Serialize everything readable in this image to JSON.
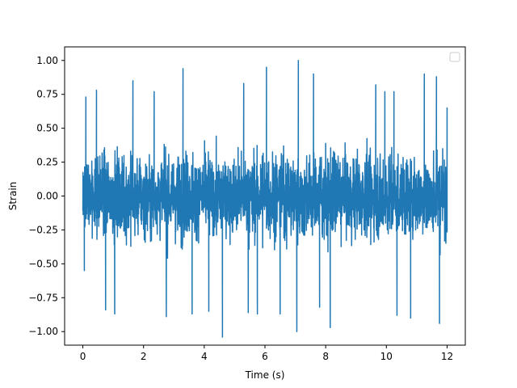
{
  "chart_data": {
    "type": "line",
    "title": "",
    "xlabel": "Time (s)",
    "ylabel": "Strain",
    "xlim": [
      -0.6,
      12.6
    ],
    "ylim": [
      -1.1,
      1.1
    ],
    "x_ticks": [
      0,
      2,
      4,
      6,
      8,
      10,
      12
    ],
    "x_tick_labels": [
      "0",
      "2",
      "4",
      "6",
      "8",
      "10",
      "12"
    ],
    "y_ticks": [
      -1.0,
      -0.75,
      -0.5,
      -0.25,
      0.0,
      0.25,
      0.5,
      0.75,
      1.0
    ],
    "y_tick_labels": [
      "−1.00",
      "−0.75",
      "−0.50",
      "−0.25",
      "0.00",
      "0.25",
      "0.50",
      "0.75",
      "1.00"
    ],
    "grid": false,
    "legend": {
      "placement": "top-right",
      "entries": []
    },
    "series": [
      {
        "color": "#1f77b4",
        "description": "dense noisy signal, mostly between -0.5 and 0.5",
        "x_range": [
          0,
          12
        ],
        "notable_extrema": [
          {
            "x": 0.05,
            "y": -0.55
          },
          {
            "x": 0.1,
            "y": 0.73
          },
          {
            "x": 0.45,
            "y": 0.78
          },
          {
            "x": 0.75,
            "y": -0.84
          },
          {
            "x": 1.05,
            "y": -0.87
          },
          {
            "x": 1.65,
            "y": 0.85
          },
          {
            "x": 2.35,
            "y": 0.77
          },
          {
            "x": 2.75,
            "y": -0.89
          },
          {
            "x": 3.3,
            "y": 0.94
          },
          {
            "x": 3.6,
            "y": -0.87
          },
          {
            "x": 4.15,
            "y": -0.85
          },
          {
            "x": 4.6,
            "y": -1.04
          },
          {
            "x": 5.3,
            "y": 0.83
          },
          {
            "x": 5.45,
            "y": -0.86
          },
          {
            "x": 5.75,
            "y": -0.87
          },
          {
            "x": 6.05,
            "y": 0.95
          },
          {
            "x": 6.5,
            "y": -0.87
          },
          {
            "x": 7.05,
            "y": -1.0
          },
          {
            "x": 7.1,
            "y": 1.0
          },
          {
            "x": 7.6,
            "y": 0.9
          },
          {
            "x": 7.8,
            "y": -0.82
          },
          {
            "x": 8.15,
            "y": -0.97
          },
          {
            "x": 9.65,
            "y": 0.82
          },
          {
            "x": 9.95,
            "y": 0.77
          },
          {
            "x": 10.25,
            "y": 0.77
          },
          {
            "x": 10.35,
            "y": -0.88
          },
          {
            "x": 10.8,
            "y": -0.9
          },
          {
            "x": 11.25,
            "y": 0.9
          },
          {
            "x": 11.65,
            "y": 0.88
          },
          {
            "x": 11.75,
            "y": -0.94
          },
          {
            "x": 12.0,
            "y": 0.65
          }
        ]
      }
    ]
  }
}
